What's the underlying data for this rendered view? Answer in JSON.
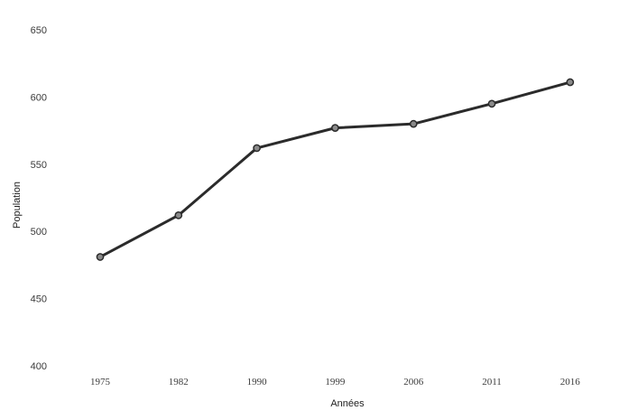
{
  "chart_data": {
    "type": "line",
    "title": "",
    "xlabel": "Années",
    "ylabel": "Population",
    "categories": [
      "1975",
      "1982",
      "1990",
      "1999",
      "2006",
      "2011",
      "2016"
    ],
    "series": [
      {
        "values": [
          481,
          512,
          562,
          577,
          580,
          595,
          611
        ]
      }
    ],
    "ylim": [
      400,
      650
    ],
    "yticks": [
      400,
      450,
      500,
      550,
      600,
      650
    ],
    "grid": false,
    "legend": "none",
    "line_color": "#2b2b2b",
    "marker_fill": "#8a8a8a"
  }
}
